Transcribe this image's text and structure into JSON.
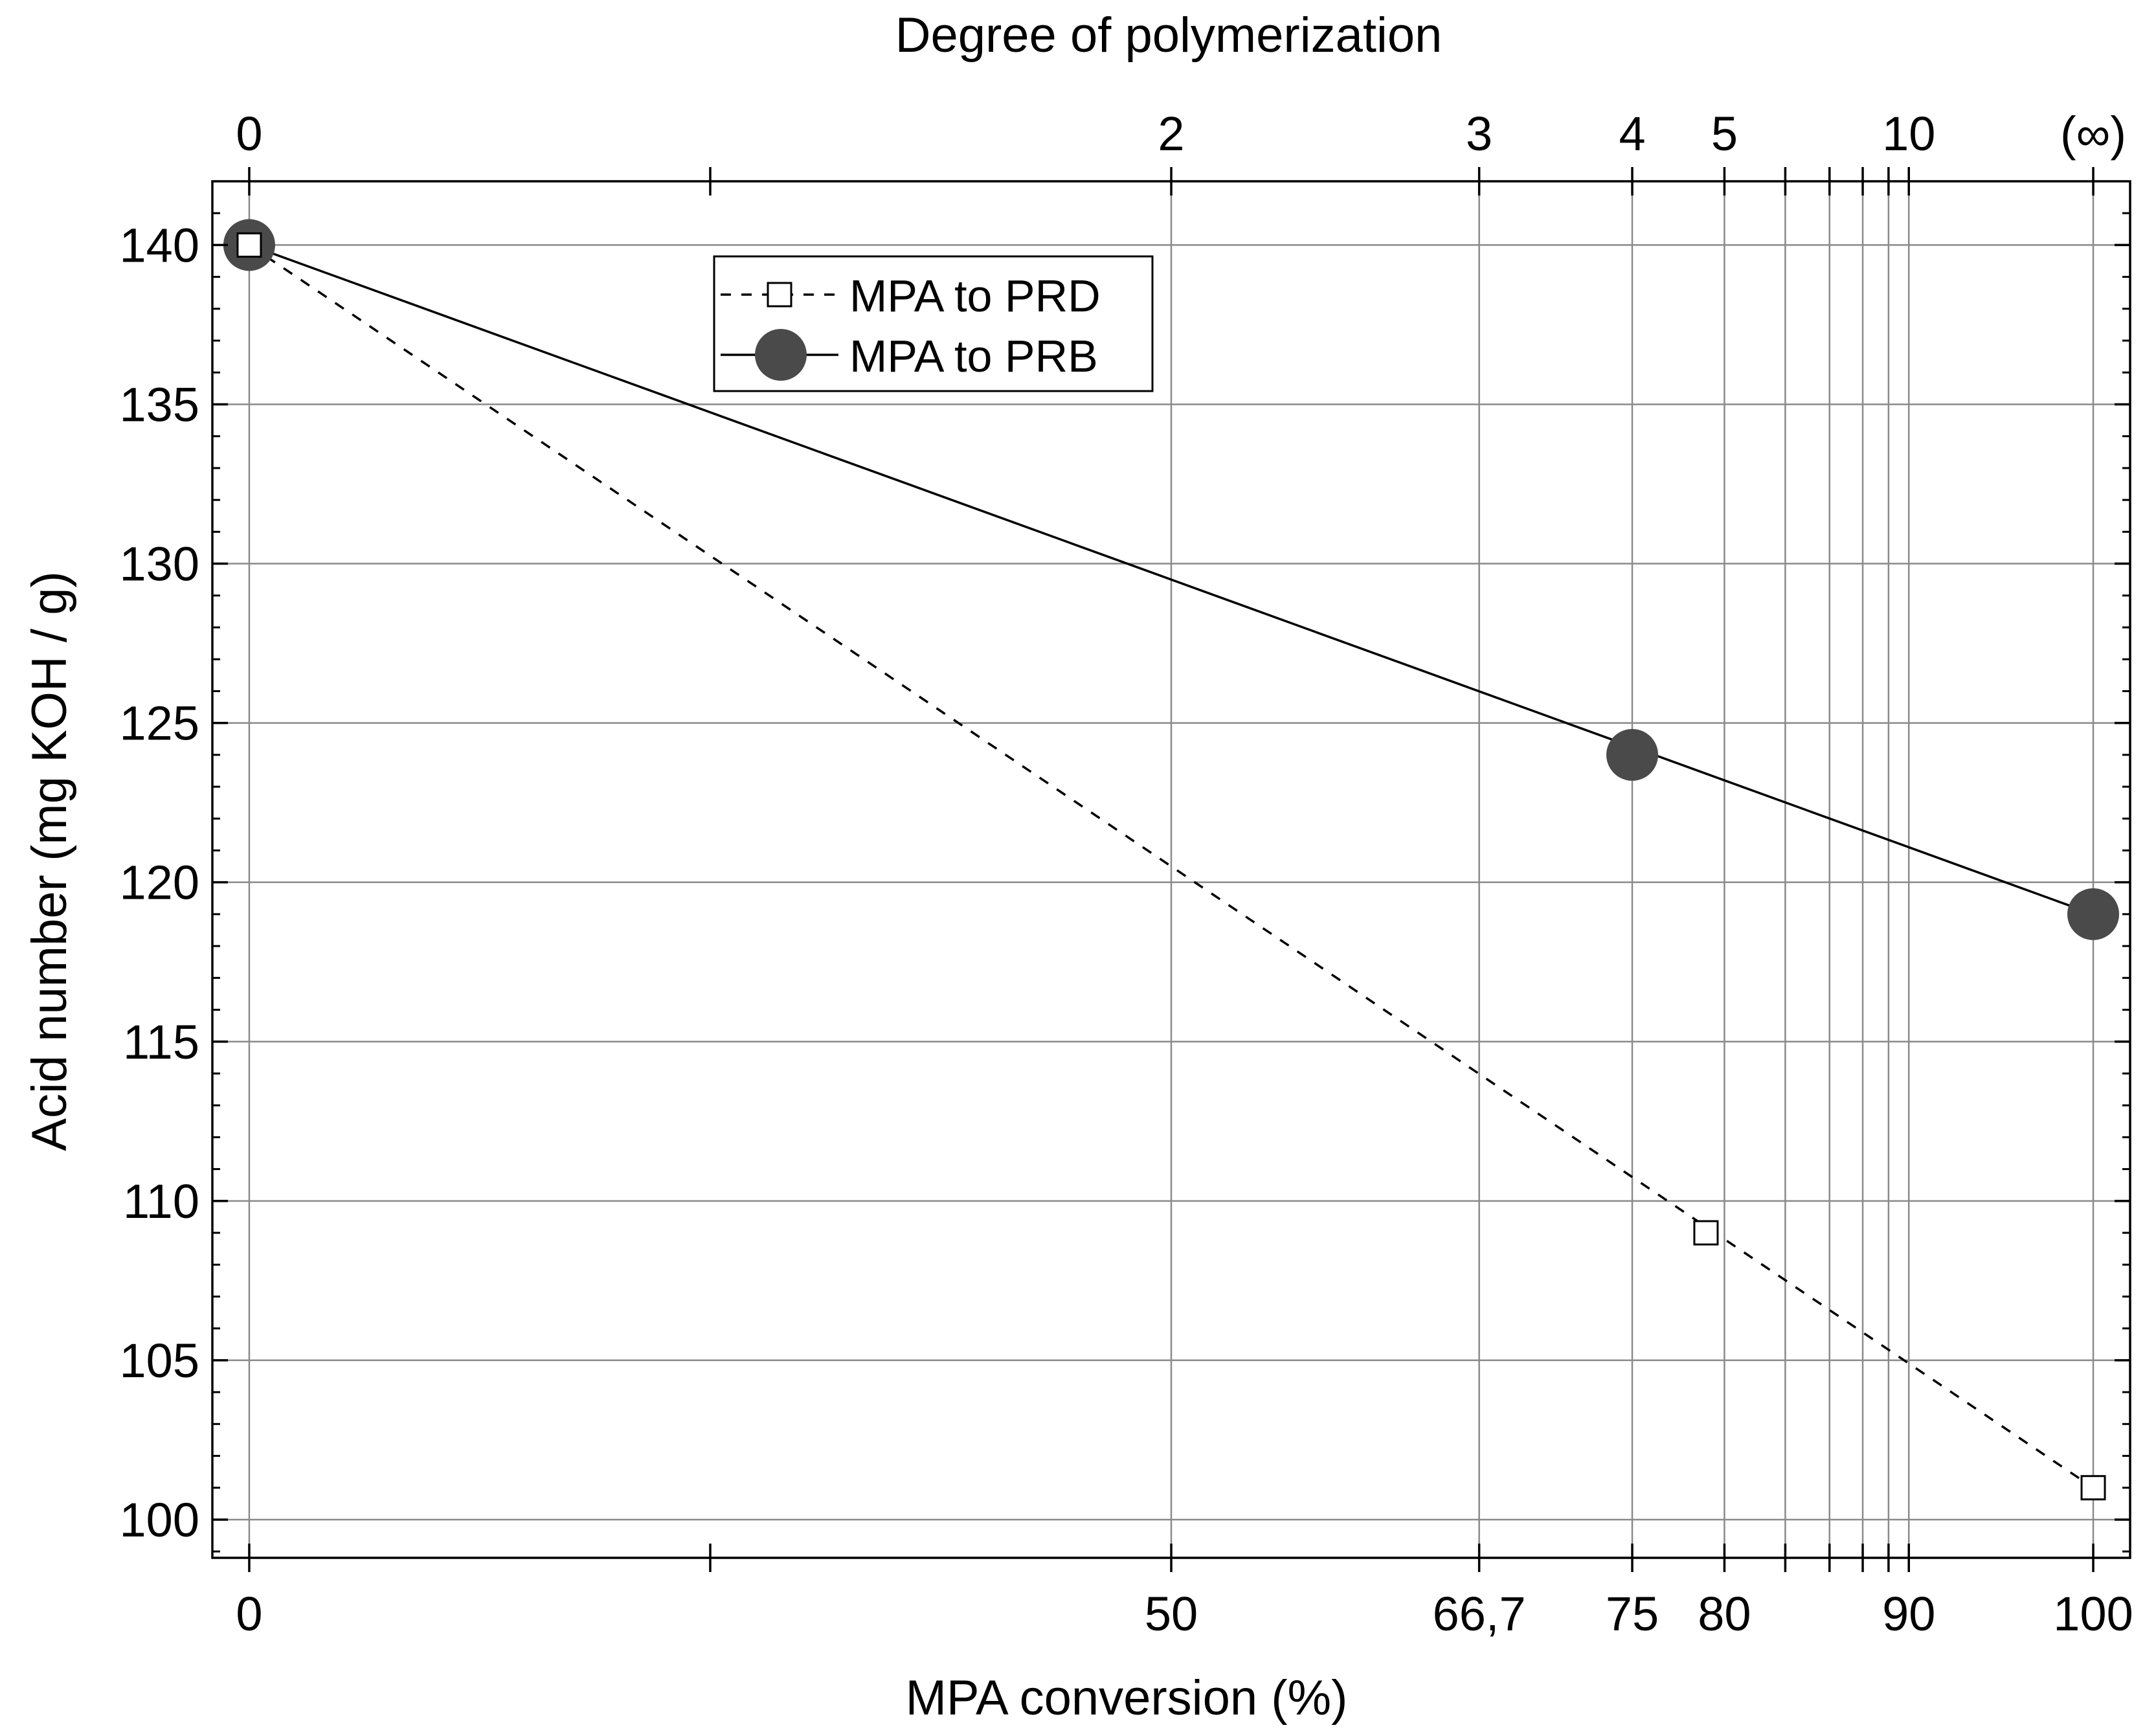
{
  "chart_data": {
    "type": "line",
    "title": "",
    "top_axis_label": "Degree of polymerization",
    "xlabel": "MPA conversion (%)",
    "ylabel": "Acid number (mg KOH / g)",
    "xlim": [
      -2,
      102
    ],
    "ylim": [
      98.8,
      142
    ],
    "yticks": [
      100,
      105,
      110,
      115,
      120,
      125,
      130,
      135,
      140
    ],
    "y_tick_labels": [
      "100",
      "105",
      "110",
      "115",
      "120",
      "125",
      "130",
      "135",
      "140"
    ],
    "y_minor_step": 1,
    "bottom_ticks": [
      {
        "value": 0,
        "label": "0"
      },
      {
        "value": 25,
        "label": ""
      },
      {
        "value": 50,
        "label": "50"
      },
      {
        "value": 66.7,
        "label": "66,7"
      },
      {
        "value": 75,
        "label": "75"
      },
      {
        "value": 80,
        "label": "80"
      },
      {
        "value": 83.3,
        "label": ""
      },
      {
        "value": 85.7,
        "label": ""
      },
      {
        "value": 87.5,
        "label": ""
      },
      {
        "value": 88.9,
        "label": ""
      },
      {
        "value": 90,
        "label": "90"
      },
      {
        "value": 100,
        "label": "100"
      }
    ],
    "top_ticks": [
      {
        "value": 0,
        "label": "0"
      },
      {
        "value": 25,
        "label": ""
      },
      {
        "value": 50,
        "label": "2"
      },
      {
        "value": 66.7,
        "label": "3"
      },
      {
        "value": 75,
        "label": "4"
      },
      {
        "value": 80,
        "label": "5"
      },
      {
        "value": 83.3,
        "label": ""
      },
      {
        "value": 85.7,
        "label": ""
      },
      {
        "value": 87.5,
        "label": ""
      },
      {
        "value": 88.9,
        "label": ""
      },
      {
        "value": 90,
        "label": "10"
      },
      {
        "value": 100,
        "label": "(∞)"
      }
    ],
    "grid_x": [
      0,
      50,
      66.7,
      75,
      80,
      83.3,
      85.7,
      87.5,
      88.9,
      90,
      100
    ],
    "grid_y": [
      100,
      105,
      110,
      115,
      120,
      125,
      130,
      135,
      140
    ],
    "grid": true,
    "legend_position": "top-left",
    "series": [
      {
        "name": "MPA to PRD",
        "marker": "open-square",
        "line": "dashed",
        "x": [
          0,
          79,
          100
        ],
        "y": [
          140,
          109,
          101
        ],
        "fit_line": {
          "x": [
            0,
            100
          ],
          "y": [
            140,
            101
          ]
        }
      },
      {
        "name": "MPA to PRB",
        "marker": "filled-circle",
        "line": "solid",
        "x": [
          0,
          75,
          100
        ],
        "y": [
          140,
          124,
          119
        ],
        "fit_line": {
          "x": [
            0,
            100
          ],
          "y": [
            140,
            119
          ]
        }
      }
    ],
    "colors": {
      "axis": "#000000",
      "grid": "#8a8a8a",
      "circle_fill": "#4a4a4a",
      "square_fill": "#ffffff"
    }
  }
}
